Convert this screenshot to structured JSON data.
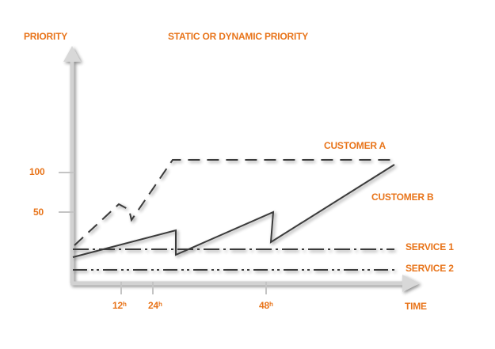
{
  "title": "STATIC OR DYNAMIC PRIORITY",
  "y_axis_label": "PRIORITY",
  "x_axis_label": "TIME",
  "y_ticks": [
    "100",
    "50"
  ],
  "x_ticks": [
    {
      "value": "12",
      "sup": "h"
    },
    {
      "value": "24",
      "sup": "h"
    },
    {
      "value": "48",
      "sup": "h"
    }
  ],
  "series": [
    {
      "name": "CUSTOMER A",
      "style": "dashed"
    },
    {
      "name": "CUSTOMER B",
      "style": "solid sawtooth"
    },
    {
      "name": "SERVICE 1",
      "style": "dash-dot"
    },
    {
      "name": "SERVICE 2",
      "style": "dash-dot-dot"
    }
  ],
  "colors": {
    "labels": "#e8741a",
    "lines": "#3a3a3a",
    "axes": "#cfcfcf"
  }
}
